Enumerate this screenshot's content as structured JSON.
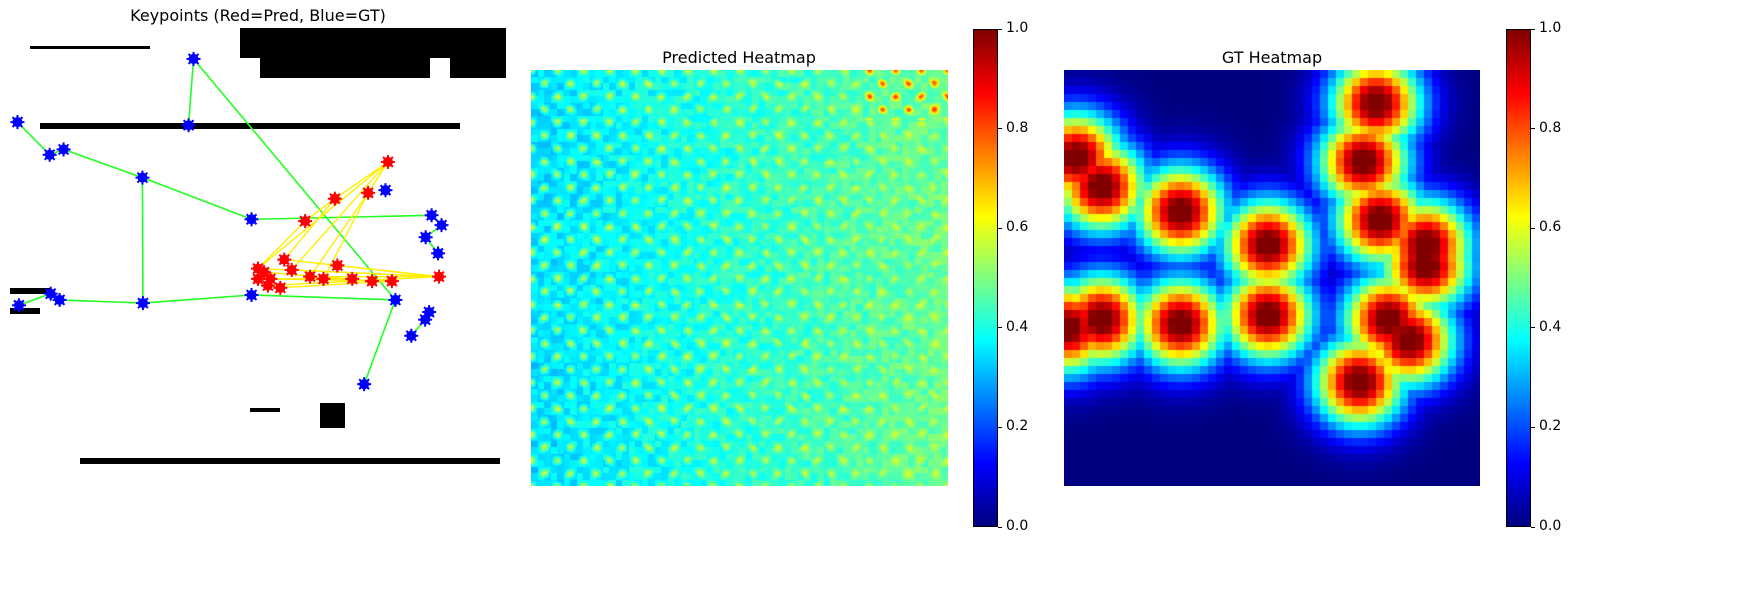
{
  "chart_data": [
    {
      "type": "scatter",
      "title": "Keypoints (Red=Pred, Blue=GT)",
      "series": [
        {
          "name": "GT",
          "color": "#0000ff",
          "points": [
            [
              0.37,
              0.069
            ],
            [
              0.015,
              0.21
            ],
            [
              0.36,
              0.217
            ],
            [
              0.08,
              0.283
            ],
            [
              0.108,
              0.271
            ],
            [
              0.267,
              0.334
            ],
            [
              0.757,
              0.362
            ],
            [
              0.487,
              0.427
            ],
            [
              0.85,
              0.418
            ],
            [
              0.87,
              0.44
            ],
            [
              0.838,
              0.467
            ],
            [
              0.863,
              0.503
            ],
            [
              0.082,
              0.593
            ],
            [
              0.018,
              0.619
            ],
            [
              0.1,
              0.607
            ],
            [
              0.268,
              0.614
            ],
            [
              0.487,
              0.596
            ],
            [
              0.777,
              0.607
            ],
            [
              0.845,
              0.634
            ],
            [
              0.837,
              0.651
            ],
            [
              0.809,
              0.687
            ],
            [
              0.714,
              0.795
            ]
          ]
        },
        {
          "name": "Pred",
          "color": "#ff0000",
          "points": [
            [
              0.762,
              0.299
            ],
            [
              0.655,
              0.381
            ],
            [
              0.722,
              0.368
            ],
            [
              0.595,
              0.431
            ],
            [
              0.5,
              0.537
            ],
            [
              0.553,
              0.517
            ],
            [
              0.5,
              0.56
            ],
            [
              0.512,
              0.545
            ],
            [
              0.525,
              0.56
            ],
            [
              0.568,
              0.54
            ],
            [
              0.605,
              0.555
            ],
            [
              0.66,
              0.53
            ],
            [
              0.632,
              0.56
            ],
            [
              0.69,
              0.56
            ],
            [
              0.73,
              0.565
            ],
            [
              0.77,
              0.565
            ],
            [
              0.865,
              0.555
            ],
            [
              0.52,
              0.575
            ],
            [
              0.545,
              0.58
            ]
          ]
        }
      ]
    },
    {
      "type": "heatmap",
      "title": "Predicted Heatmap",
      "colormap": "jet",
      "range": [
        0,
        1
      ],
      "colorbar_ticks": [
        "0.0",
        "0.2",
        "0.4",
        "0.6",
        "0.8",
        "1.0"
      ]
    },
    {
      "type": "heatmap",
      "title": "GT Heatmap",
      "colormap": "jet",
      "range": [
        0,
        1
      ],
      "colorbar_ticks": [
        "0.0",
        "0.2",
        "0.4",
        "0.6",
        "0.8",
        "1.0"
      ]
    }
  ]
}
